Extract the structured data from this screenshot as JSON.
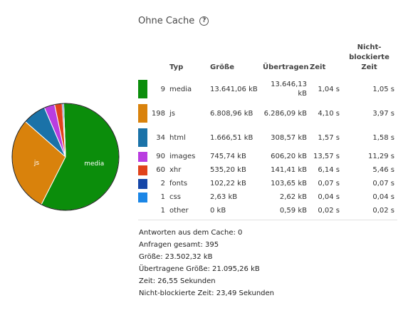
{
  "header": {
    "title": "Ohne Cache",
    "help_icon": "help-icon",
    "help_glyph": "?"
  },
  "table": {
    "columns": {
      "type": "Typ",
      "size": "Größe",
      "transferred": "Übertragen",
      "time": "Zeit",
      "nonblocking": "Nicht-blockierte Zeit"
    },
    "rows": [
      {
        "count": "9",
        "type": "media",
        "size": "13.641,06 kB",
        "transferred": "13.646,13 kB",
        "time": "1,04 s",
        "nonblocking": "1,05 s",
        "color": "#0b8d0b"
      },
      {
        "count": "198",
        "type": "js",
        "size": "6.808,96 kB",
        "transferred": "6.286,09 kB",
        "time": "4,10 s",
        "nonblocking": "3,97 s",
        "color": "#d9820c"
      },
      {
        "count": "34",
        "type": "html",
        "size": "1.666,51 kB",
        "transferred": "308,57 kB",
        "time": "1,57 s",
        "nonblocking": "1,58 s",
        "color": "#1a72a8"
      },
      {
        "count": "90",
        "type": "images",
        "size": "745,74 kB",
        "transferred": "606,20 kB",
        "time": "13,57 s",
        "nonblocking": "11,29 s",
        "color": "#b93de0"
      },
      {
        "count": "60",
        "type": "xhr",
        "size": "535,20 kB",
        "transferred": "141,41 kB",
        "time": "6,14 s",
        "nonblocking": "5,46 s",
        "color": "#e0431b"
      },
      {
        "count": "2",
        "type": "fonts",
        "size": "102,22 kB",
        "transferred": "103,65 kB",
        "time": "0,07 s",
        "nonblocking": "0,07 s",
        "color": "#1546a8"
      },
      {
        "count": "1",
        "type": "css",
        "size": "2,63 kB",
        "transferred": "2,62 kB",
        "time": "0,04 s",
        "nonblocking": "0,04 s",
        "color": "#1b86e6"
      },
      {
        "count": "1",
        "type": "other",
        "size": "0 kB",
        "transferred": "0,59 kB",
        "time": "0,02 s",
        "nonblocking": "0,02 s",
        "color": ""
      }
    ]
  },
  "summary": {
    "cached": "Antworten aus dem Cache: 0",
    "requests": "Anfragen gesamt: 395",
    "size": "Größe: 23.502,32 kB",
    "transferred": "Übertragene Größe: 21.095,26 kB",
    "time": "Zeit: 26,55 Sekunden",
    "nonblocking": "Nicht-blockierte Zeit: 23,49 Sekunden"
  },
  "chart_data": {
    "type": "pie",
    "slices": [
      {
        "label": "media",
        "value": 13641.06,
        "color": "#0b8d0b"
      },
      {
        "label": "js",
        "value": 6808.96,
        "color": "#d9820c"
      },
      {
        "label": "",
        "value": 1666.51,
        "color": "#1a72a8"
      },
      {
        "label": "",
        "value": 745.74,
        "color": "#b93de0"
      },
      {
        "label": "",
        "value": 535.2,
        "color": "#e0431b"
      },
      {
        "label": "",
        "value": 102.22,
        "color": "#1546a8"
      },
      {
        "label": "",
        "value": 2.63,
        "color": "#1b86e6"
      }
    ]
  }
}
